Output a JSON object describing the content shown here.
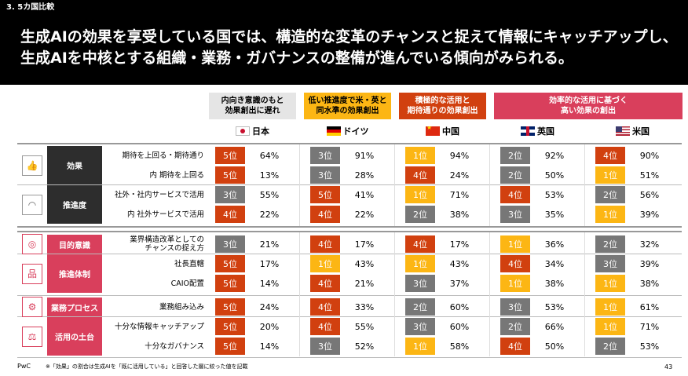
{
  "section": "3. 5カ国比較",
  "headline": "生成AIの効果を享受している国では、構造的な変革のチャンスと捉えて情報にキャッチアップし、生成AIを中核とする組織・業務・ガバナンスの整備が進んでいる傾向がみられる。",
  "colors": {
    "rank_high": "#d1400f",
    "rank_mid": "#777777",
    "rank_top": "#fcb614",
    "group_red": "#d93f5c",
    "group_dark": "#2d2d2d"
  },
  "columns": [
    {
      "header": "内向き意識のもと\n効果創出に遅れ",
      "country": "日本",
      "flag": "flag-jp",
      "header_bg": "#e5e5e5",
      "header_color": "#000"
    },
    {
      "header": "低い推進度で米・英と\n同水準の効果創出",
      "country": "ドイツ",
      "flag": "flag-de",
      "header_bg": "#fcb614",
      "header_color": "#000"
    },
    {
      "header": "積極的な活用と\n期待通りの効果創出",
      "country": "中国",
      "flag": "flag-cn",
      "header_bg": "#d1400f",
      "header_color": "#fff"
    },
    {
      "header": "効率的な活用に基づく\n高い効果の創出",
      "country": "英国",
      "flag": "flag-uk",
      "header_bg": "#d93f5c",
      "header_color": "#fff"
    },
    {
      "header": "",
      "country": "米国",
      "flag": "flag-us",
      "header_bg": "#d93f5c",
      "header_color": "#fff"
    }
  ],
  "groups": [
    {
      "label": "効果",
      "style": "dark",
      "icon": "thumbs-up-icon",
      "glyph": "👍",
      "rows": [
        0,
        1
      ]
    },
    {
      "label": "推進度",
      "style": "dark",
      "icon": "gauge-icon",
      "glyph": "◠",
      "rows": [
        2,
        3
      ]
    },
    {
      "label": "目的意識",
      "style": "red",
      "icon": "target-icon",
      "glyph": "◎",
      "rows": [
        4
      ]
    },
    {
      "label": "推進体制",
      "style": "red",
      "icon": "org-chart-icon",
      "glyph": "品",
      "rows": [
        5,
        6
      ]
    },
    {
      "label": "業務プロセス",
      "style": "red",
      "icon": "process-icon",
      "glyph": "⚙",
      "rows": [
        7
      ]
    },
    {
      "label": "活用の土台",
      "style": "red",
      "icon": "scales-icon",
      "glyph": "⚖",
      "rows": [
        8,
        9
      ]
    }
  ],
  "rows": [
    {
      "label": "期待を上回る・期待通り",
      "cells": [
        [
          "5位",
          "64%"
        ],
        [
          "3位",
          "91%"
        ],
        [
          "1位",
          "94%"
        ],
        [
          "2位",
          "92%"
        ],
        [
          "4位",
          "90%"
        ]
      ]
    },
    {
      "label": "内 期待を上回る",
      "cells": [
        [
          "5位",
          "13%"
        ],
        [
          "3位",
          "28%"
        ],
        [
          "4位",
          "24%"
        ],
        [
          "2位",
          "50%"
        ],
        [
          "1位",
          "51%"
        ]
      ]
    },
    {
      "label": "社外・社内サービスで活用",
      "cells": [
        [
          "3位",
          "55%"
        ],
        [
          "5位",
          "41%"
        ],
        [
          "1位",
          "71%"
        ],
        [
          "4位",
          "53%"
        ],
        [
          "2位",
          "56%"
        ]
      ]
    },
    {
      "label": "内 社外サービスで活用",
      "cells": [
        [
          "4位",
          "22%"
        ],
        [
          "4位",
          "22%"
        ],
        [
          "2位",
          "38%"
        ],
        [
          "3位",
          "35%"
        ],
        [
          "1位",
          "39%"
        ]
      ]
    },
    {
      "label": "業界構造改革としての\nチャンスの捉え方",
      "cells": [
        [
          "3位",
          "21%"
        ],
        [
          "4位",
          "17%"
        ],
        [
          "4位",
          "17%"
        ],
        [
          "1位",
          "36%"
        ],
        [
          "2位",
          "32%"
        ]
      ]
    },
    {
      "label": "社長直轄",
      "cells": [
        [
          "5位",
          "17%"
        ],
        [
          "1位",
          "43%"
        ],
        [
          "1位",
          "43%"
        ],
        [
          "4位",
          "34%"
        ],
        [
          "3位",
          "39%"
        ]
      ]
    },
    {
      "label": "CAIO配置",
      "cells": [
        [
          "5位",
          "14%"
        ],
        [
          "4位",
          "21%"
        ],
        [
          "3位",
          "37%"
        ],
        [
          "1位",
          "38%"
        ],
        [
          "1位",
          "38%"
        ]
      ]
    },
    {
      "label": "業務組み込み",
      "cells": [
        [
          "5位",
          "24%"
        ],
        [
          "4位",
          "33%"
        ],
        [
          "2位",
          "60%"
        ],
        [
          "3位",
          "53%"
        ],
        [
          "1位",
          "61%"
        ]
      ]
    },
    {
      "label": "十分な情報キャッチアップ",
      "cells": [
        [
          "5位",
          "20%"
        ],
        [
          "4位",
          "55%"
        ],
        [
          "3位",
          "60%"
        ],
        [
          "2位",
          "66%"
        ],
        [
          "1位",
          "71%"
        ]
      ]
    },
    {
      "label": "十分なガバナンス",
      "cells": [
        [
          "5位",
          "14%"
        ],
        [
          "3位",
          "52%"
        ],
        [
          "1位",
          "58%"
        ],
        [
          "4位",
          "50%"
        ],
        [
          "2位",
          "53%"
        ]
      ]
    }
  ],
  "footer": {
    "logo": "PwC",
    "note": "※「効果」の割合は生成AIを「既に活用している」と回答した層に絞った値を記載",
    "page": "43"
  }
}
